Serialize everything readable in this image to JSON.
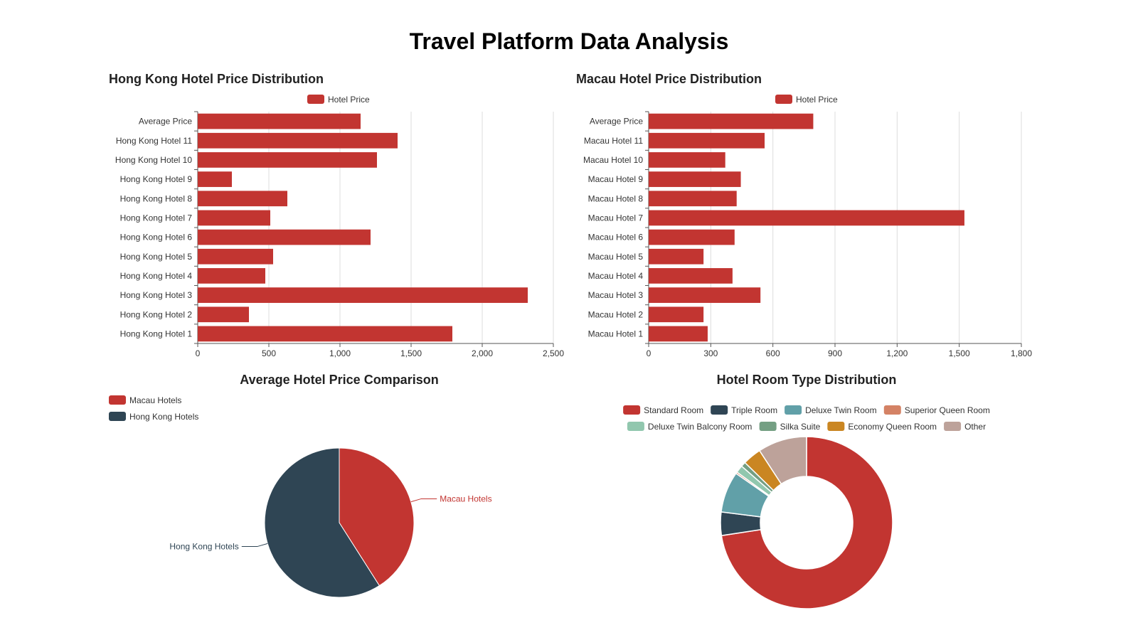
{
  "page": {
    "title": "Travel Platform Data Analysis"
  },
  "chart_data": [
    {
      "id": "hk",
      "type": "bar",
      "orientation": "horizontal",
      "title": "Hong Kong Hotel Price Distribution",
      "categories": [
        "Hong Kong Hotel 1",
        "Hong Kong Hotel 2",
        "Hong Kong Hotel 3",
        "Hong Kong Hotel 4",
        "Hong Kong Hotel 5",
        "Hong Kong Hotel 6",
        "Hong Kong Hotel 7",
        "Hong Kong Hotel 8",
        "Hong Kong Hotel 9",
        "Hong Kong Hotel 10",
        "Hong Kong Hotel 11",
        "Average Price"
      ],
      "series": [
        {
          "name": "Hotel Price",
          "color": "#c23531",
          "values": [
            1790,
            360,
            2320,
            475,
            530,
            1215,
            510,
            630,
            240,
            1260,
            1405,
            1145
          ]
        }
      ],
      "xlim": [
        0,
        2500
      ],
      "xticks": [
        0,
        500,
        1000,
        1500,
        2000,
        2500
      ],
      "xtick_labels": [
        "0",
        "500",
        "1,000",
        "1,500",
        "2,000",
        "2,500"
      ],
      "grid": true,
      "legend": "top"
    },
    {
      "id": "mo",
      "type": "bar",
      "orientation": "horizontal",
      "title": "Macau Hotel Price Distribution",
      "categories": [
        "Macau Hotel 1",
        "Macau Hotel 2",
        "Macau Hotel 3",
        "Macau Hotel 4",
        "Macau Hotel 5",
        "Macau Hotel 6",
        "Macau Hotel 7",
        "Macau Hotel 8",
        "Macau Hotel 9",
        "Macau Hotel 10",
        "Macau Hotel 11",
        "Average Price"
      ],
      "series": [
        {
          "name": "Hotel Price",
          "color": "#c23531",
          "values": [
            285,
            265,
            540,
            405,
            265,
            415,
            1525,
            425,
            445,
            370,
            560,
            795
          ]
        }
      ],
      "xlim": [
        0,
        1800
      ],
      "xticks": [
        0,
        300,
        600,
        900,
        1200,
        1500,
        1800
      ],
      "xtick_labels": [
        "0",
        "300",
        "600",
        "900",
        "1,200",
        "1,500",
        "1,800"
      ],
      "grid": true,
      "legend": "top"
    },
    {
      "id": "avg",
      "type": "pie",
      "title": "Average Hotel Price Comparison",
      "slices": [
        {
          "name": "Macau Hotels",
          "value": 795,
          "color": "#c23531"
        },
        {
          "name": "Hong Kong Hotels",
          "value": 1145,
          "color": "#2f4554"
        }
      ],
      "legend": "top-left"
    },
    {
      "id": "room",
      "type": "pie",
      "variant": "donut",
      "title": "Hotel Room Type Distribution",
      "slices": [
        {
          "name": "Standard Room",
          "value": 72.6,
          "color": "#c23531"
        },
        {
          "name": "Triple Room",
          "value": 4.4,
          "color": "#2f4554"
        },
        {
          "name": "Deluxe Twin Room",
          "value": 7.7,
          "color": "#61a0a8"
        },
        {
          "name": "Superior Queen Room",
          "value": 0.3,
          "color": "#d48265"
        },
        {
          "name": "Deluxe Twin Balcony Room",
          "value": 1.4,
          "color": "#91c7ae"
        },
        {
          "name": "Silka Suite",
          "value": 0.9,
          "color": "#749f83"
        },
        {
          "name": "Economy Queen Room",
          "value": 3.5,
          "color": "#ca8622"
        },
        {
          "name": "Other",
          "value": 9.2,
          "color": "#bda29a"
        }
      ],
      "legend": "top"
    }
  ]
}
